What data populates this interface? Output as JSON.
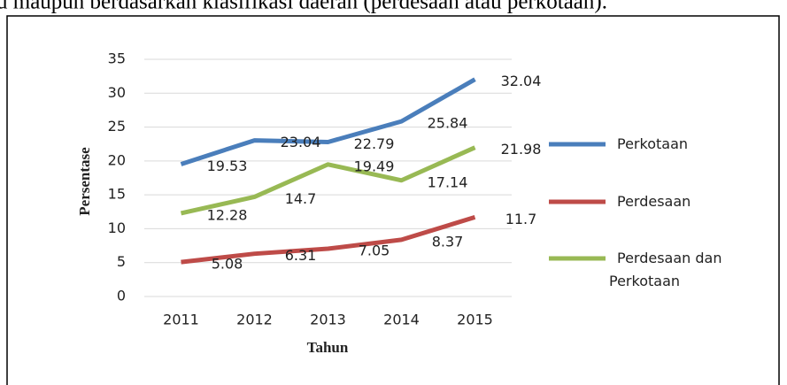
{
  "page_text": "u maupun berdasarkan klasifikasi daerah (perdesaan atau perkotaan).",
  "chart_data": {
    "type": "line",
    "x_label": "Tahun",
    "y_label": "Persentase",
    "categories": [
      "2011",
      "2012",
      "2013",
      "2014",
      "2015"
    ],
    "series": [
      {
        "name": "Perkotaan",
        "color": "#4a7ebb",
        "values": [
          19.53,
          23.04,
          22.79,
          25.84,
          32.04
        ]
      },
      {
        "name": "Perdesaan",
        "color": "#be4b48",
        "values": [
          5.08,
          6.31,
          7.05,
          8.37,
          11.7
        ]
      },
      {
        "name": "Perdesaan dan Perkotaan",
        "color": "#98b954",
        "values": [
          12.28,
          14.7,
          19.49,
          17.14,
          21.98
        ]
      }
    ],
    "ylim": [
      0,
      35
    ],
    "yticks": [
      0,
      5,
      10,
      15,
      20,
      25,
      30,
      35
    ],
    "grid": true,
    "legend": "right"
  }
}
